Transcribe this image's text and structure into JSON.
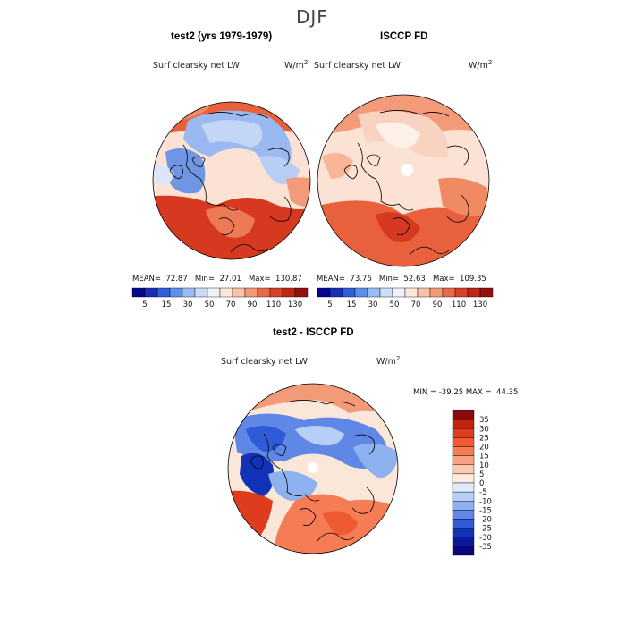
{
  "title": "DJF",
  "panels": [
    {
      "name": "test2 (yrs 1979-1979)",
      "variable": "Surf clearsky net LW",
      "units_base": "W/m",
      "units_exp": "2",
      "stats": {
        "mean_label": "MEAN=",
        "mean": "72.87",
        "min_label": "Min=",
        "min": "27.01",
        "max_label": "Max=",
        "max": "130.87"
      }
    },
    {
      "name": "ISCCP FD",
      "variable": "Surf clearsky net LW",
      "units_base": "W/m",
      "units_exp": "2",
      "stats": {
        "mean_label": "MEAN=",
        "mean": "73.76",
        "min_label": "Min=",
        "min": "52.63",
        "max_label": "Max=",
        "max": "109.35"
      }
    },
    {
      "name": "test2 - ISCCP FD",
      "variable": "Surf clearsky net LW",
      "units_base": "W/m",
      "units_exp": "2",
      "stats": {
        "min_label": "MIN =",
        "min": "-39.25",
        "max_label": "MAX =",
        "max": "44.35"
      }
    }
  ],
  "colorbar_top": {
    "labels": [
      "5",
      "15",
      "30",
      "50",
      "70",
      "90",
      "110",
      "130"
    ],
    "colors": [
      "#08088c",
      "#1a2fb8",
      "#2f5ed8",
      "#5f8ee8",
      "#98bbf2",
      "#cadcf6",
      "#eef2fb",
      "#fbe6d8",
      "#f8c2a6",
      "#f29877",
      "#e96a4a",
      "#d9402a",
      "#bf2618",
      "#931010"
    ]
  },
  "colorbar_diff": {
    "labels": [
      "35",
      "30",
      "25",
      "20",
      "15",
      "10",
      "5",
      "0",
      "-5",
      "-10",
      "-15",
      "-20",
      "-25",
      "-30",
      "-35"
    ],
    "colors": [
      "#8c0a0a",
      "#c0230f",
      "#de3b1f",
      "#ef5a33",
      "#f57c55",
      "#f8a283",
      "#fbc9ae",
      "#fdebdd",
      "#deebfb",
      "#b7cff6",
      "#8eb1ef",
      "#5f88e6",
      "#2f5bd8",
      "#1233b8",
      "#0a1a98",
      "#06087c"
    ]
  },
  "map_colors": {
    "cold": "#3f6fd9",
    "cool": "#9ab9f0",
    "pale": "#d8e5fa",
    "neutral": "#fbe7da",
    "warm": "#f39b78",
    "hot": "#e9603c",
    "hotter": "#d6391f",
    "land_line": "#000000"
  }
}
